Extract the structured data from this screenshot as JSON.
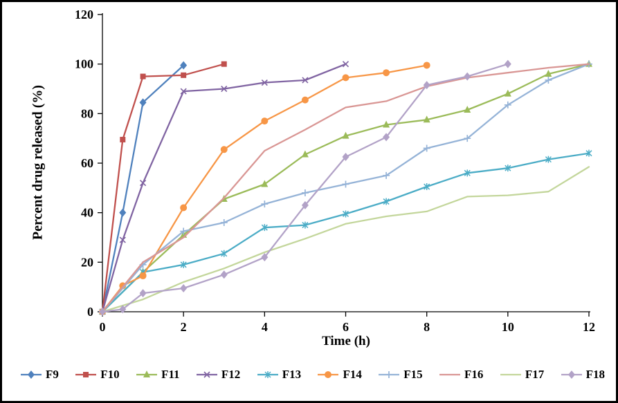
{
  "chart_data": {
    "type": "line",
    "title": "",
    "xlabel": "Time (h)",
    "ylabel": "Percent drug released (%)",
    "xlim": [
      0,
      12
    ],
    "ylim": [
      0,
      120
    ],
    "xticks": [
      0,
      2,
      4,
      6,
      8,
      10,
      12
    ],
    "yticks": [
      0,
      20,
      40,
      60,
      80,
      100,
      120
    ],
    "grid": false,
    "legend_position": "bottom",
    "series": [
      {
        "name": "F9",
        "color": "#4F81BD",
        "marker": "diamond",
        "x": [
          0,
          0.5,
          1,
          2
        ],
        "y": [
          0,
          40,
          84.5,
          99.5
        ]
      },
      {
        "name": "F10",
        "color": "#C0504D",
        "marker": "square",
        "x": [
          0,
          0.5,
          1,
          2,
          3
        ],
        "y": [
          0,
          69.5,
          95,
          95.5,
          100
        ]
      },
      {
        "name": "F11",
        "color": "#9BBB59",
        "marker": "triangle",
        "x": [
          0,
          1,
          2,
          3,
          4,
          5,
          6,
          7,
          8,
          9,
          10,
          11,
          12
        ],
        "y": [
          0,
          16,
          31,
          45.5,
          51.5,
          63.5,
          71,
          75.5,
          77.5,
          81.5,
          88,
          96,
          100
        ]
      },
      {
        "name": "F12",
        "color": "#8064A2",
        "marker": "x",
        "x": [
          0,
          0.5,
          1,
          2,
          3,
          4,
          5,
          6
        ],
        "y": [
          0,
          29,
          52,
          89,
          90,
          92.5,
          93.5,
          100
        ]
      },
      {
        "name": "F13",
        "color": "#4BACC6",
        "marker": "asterisk",
        "x": [
          0,
          1,
          2,
          3,
          4,
          5,
          6,
          7,
          8,
          9,
          10,
          11,
          12
        ],
        "y": [
          0,
          16,
          19,
          23.5,
          34,
          35,
          39.5,
          44.5,
          50.5,
          56,
          58,
          61.5,
          64
        ]
      },
      {
        "name": "F14",
        "color": "#F79646",
        "marker": "circle",
        "x": [
          0,
          0.5,
          1,
          2,
          3,
          4,
          5,
          6,
          7,
          8
        ],
        "y": [
          0,
          10.5,
          14.5,
          42,
          65.5,
          77,
          85.5,
          94.5,
          96.5,
          99.5
        ]
      },
      {
        "name": "F15",
        "color": "#95B3D7",
        "marker": "plus",
        "x": [
          0,
          1,
          2,
          3,
          4,
          5,
          6,
          7,
          8,
          9,
          10,
          11,
          12
        ],
        "y": [
          0,
          19,
          32.5,
          36,
          43.5,
          48,
          51.5,
          55,
          66,
          70,
          83.5,
          93.5,
          100
        ]
      },
      {
        "name": "F16",
        "color": "#D99694",
        "marker": "none",
        "x": [
          0,
          1,
          2,
          3,
          4,
          5,
          6,
          7,
          8,
          9,
          10,
          11,
          12
        ],
        "y": [
          0,
          20,
          30,
          46,
          65,
          73.5,
          82.5,
          85,
          91,
          94.5,
          96.5,
          98.5,
          100
        ]
      },
      {
        "name": "F17",
        "color": "#C3D69B",
        "marker": "none",
        "x": [
          0,
          1,
          2,
          3,
          4,
          5,
          6,
          7,
          8,
          9,
          10,
          11,
          12
        ],
        "y": [
          0,
          5,
          12,
          17.5,
          24,
          29.5,
          35.5,
          38.5,
          40.5,
          46.5,
          47,
          48.5,
          58.5
        ]
      },
      {
        "name": "F18",
        "color": "#B2A2C7",
        "marker": "diamond",
        "x": [
          0,
          0.5,
          1,
          2,
          3,
          4,
          5,
          6,
          7,
          8,
          9,
          10
        ],
        "y": [
          0,
          1,
          7.5,
          9.5,
          15,
          22,
          43,
          62.5,
          70.5,
          91.5,
          95,
          100
        ]
      }
    ]
  }
}
